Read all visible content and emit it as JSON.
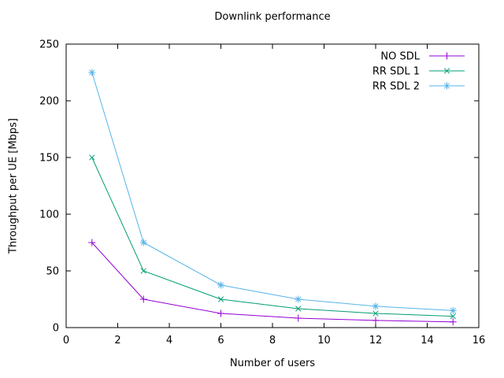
{
  "chart_data": {
    "type": "line",
    "title": "Downlink performance",
    "xlabel": "Number of users",
    "ylabel": "Throughput per UE [Mbps]",
    "x": [
      1,
      3,
      6,
      9,
      12,
      15
    ],
    "series": [
      {
        "name": "NO SDL",
        "color": "#9400d3",
        "marker": "plus",
        "values": [
          75,
          25,
          12.5,
          8.3,
          6.3,
          5
        ]
      },
      {
        "name": "RR SDL 1",
        "color": "#009e73",
        "marker": "cross",
        "values": [
          150,
          50,
          25,
          16.7,
          12.5,
          10
        ]
      },
      {
        "name": "RR SDL 2",
        "color": "#56b4e9",
        "marker": "asterisk",
        "values": [
          225,
          75,
          37.5,
          25,
          18.8,
          15
        ]
      }
    ],
    "xlim": [
      0,
      16
    ],
    "ylim": [
      0,
      250
    ],
    "xticks": [
      0,
      2,
      4,
      6,
      8,
      10,
      12,
      14,
      16
    ],
    "yticks": [
      0,
      50,
      100,
      150,
      200,
      250
    ],
    "grid": false,
    "legend_position": "top-right",
    "axis_color": "#000000",
    "background_color": "#ffffff"
  }
}
